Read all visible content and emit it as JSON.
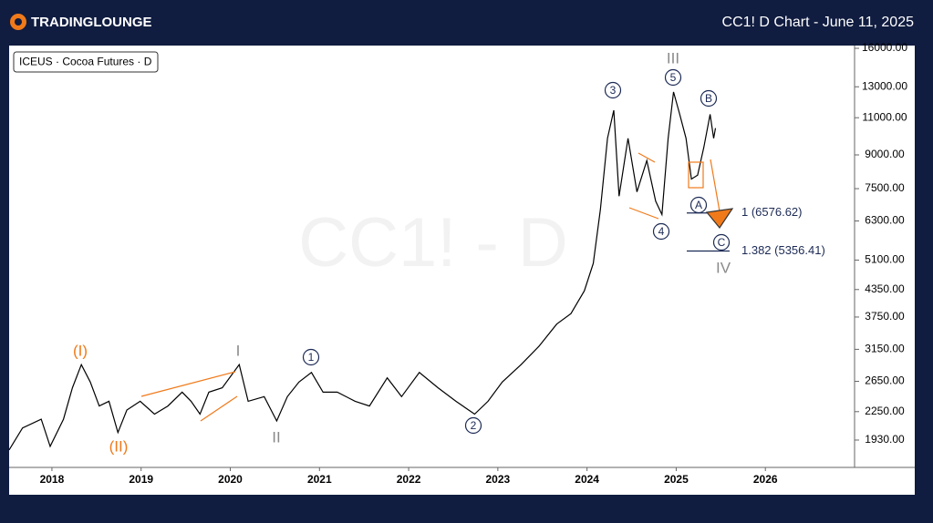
{
  "header": {
    "logo": "TRADINGLOUNGE"
  },
  "chart_data": {
    "type": "line",
    "title": "CC1! D Chart - June 11, 2025",
    "symbol_label": "ICEUS · Cocoa Futures · D",
    "watermark": "CC1! - D",
    "log_scale": true,
    "color": "#000000",
    "x": [
      2017.52,
      2017.67,
      2017.88,
      2017.98,
      2018.13,
      2018.23,
      2018.33,
      2018.43,
      2018.53,
      2018.64,
      2018.74,
      2018.84,
      2018.99,
      2019.15,
      2019.3,
      2019.46,
      2019.56,
      2019.66,
      2019.76,
      2019.91,
      2020.1,
      2020.2,
      2020.38,
      2020.52,
      2020.64,
      2020.77,
      2020.91,
      2021.04,
      2021.2,
      2021.4,
      2021.56,
      2021.76,
      2021.92,
      2022.12,
      2022.33,
      2022.53,
      2022.74,
      2022.89,
      2023.05,
      2023.26,
      2023.46,
      2023.66,
      2023.82,
      2023.97,
      2024.07,
      2024.15,
      2024.23,
      2024.3,
      2024.36,
      2024.46,
      2024.56,
      2024.67,
      2024.77,
      2024.84,
      2024.91,
      2024.97,
      2025.04,
      2025.11,
      2025.17,
      2025.24,
      2025.31,
      2025.38,
      2025.42,
      2025.44
    ],
    "values": [
      1830,
      2060,
      2160,
      1865,
      2160,
      2560,
      2900,
      2640,
      2320,
      2380,
      2010,
      2270,
      2380,
      2220,
      2320,
      2500,
      2380,
      2220,
      2500,
      2560,
      2900,
      2380,
      2440,
      2140,
      2440,
      2640,
      2780,
      2500,
      2500,
      2380,
      2320,
      2700,
      2440,
      2780,
      2560,
      2380,
      2220,
      2380,
      2640,
      2900,
      3200,
      3610,
      3820,
      4320,
      5010,
      6700,
      9840,
      11450,
      7200,
      9840,
      7370,
      8730,
      7010,
      6520,
      9840,
      12640,
      11200,
      9840,
      7900,
      8070,
      9370,
      11200,
      9840,
      10400
    ],
    "xlim": [
      2017.52,
      2027.0
    ],
    "xticks": [
      2018,
      2019,
      2020,
      2021,
      2022,
      2023,
      2024,
      2025,
      2026
    ],
    "ylim": [
      1665,
      16240
    ],
    "yticks": [
      {
        "value": 1930,
        "label": "1930.00"
      },
      {
        "value": 2250,
        "label": "2250.00"
      },
      {
        "value": 2650,
        "label": "2650.00"
      },
      {
        "value": 3150,
        "label": "3150.00"
      },
      {
        "value": 3750,
        "label": "3750.00"
      },
      {
        "value": 4350,
        "label": "4350.00"
      },
      {
        "value": 5100,
        "label": "5100.00"
      },
      {
        "value": 6300,
        "label": "6300.00"
      },
      {
        "value": 7500,
        "label": "7500.00"
      },
      {
        "value": 9000,
        "label": "9000.00"
      },
      {
        "value": 11000,
        "label": "11000.00"
      },
      {
        "value": 13000,
        "label": "13000.00"
      },
      {
        "value": 16000,
        "label": "16000.00"
      }
    ],
    "fib_levels": [
      {
        "value": 6576.62,
        "label": "1 (6576.62)"
      },
      {
        "value": 5356.41,
        "label": "1.382 (5356.41)"
      }
    ],
    "annotations": [
      {
        "text": "(I)",
        "color": "#f07a1a",
        "circled": false
      },
      {
        "text": "(II)",
        "color": "#f07a1a",
        "circled": false
      },
      {
        "text": "I",
        "color": "#8a8a8a",
        "circled": false
      },
      {
        "text": "II",
        "color": "#8a8a8a",
        "circled": false
      },
      {
        "text": "1",
        "color": "#1c2a55",
        "circled": true
      },
      {
        "text": "2",
        "color": "#1c2a55",
        "circled": true
      },
      {
        "text": "3",
        "color": "#1c2a55",
        "circled": true
      },
      {
        "text": "4",
        "color": "#1c2a55",
        "circled": true
      },
      {
        "text": "5",
        "color": "#1c2a55",
        "circled": true
      },
      {
        "text": "III",
        "color": "#8a8a8a",
        "circled": false
      },
      {
        "text": "A",
        "color": "#1c2a55",
        "circled": true
      },
      {
        "text": "B",
        "color": "#1c2a55",
        "circled": true
      },
      {
        "text": "C",
        "color": "#1c2a55",
        "circled": true
      },
      {
        "text": "IV",
        "color": "#8a8a8a",
        "circled": false
      }
    ]
  }
}
